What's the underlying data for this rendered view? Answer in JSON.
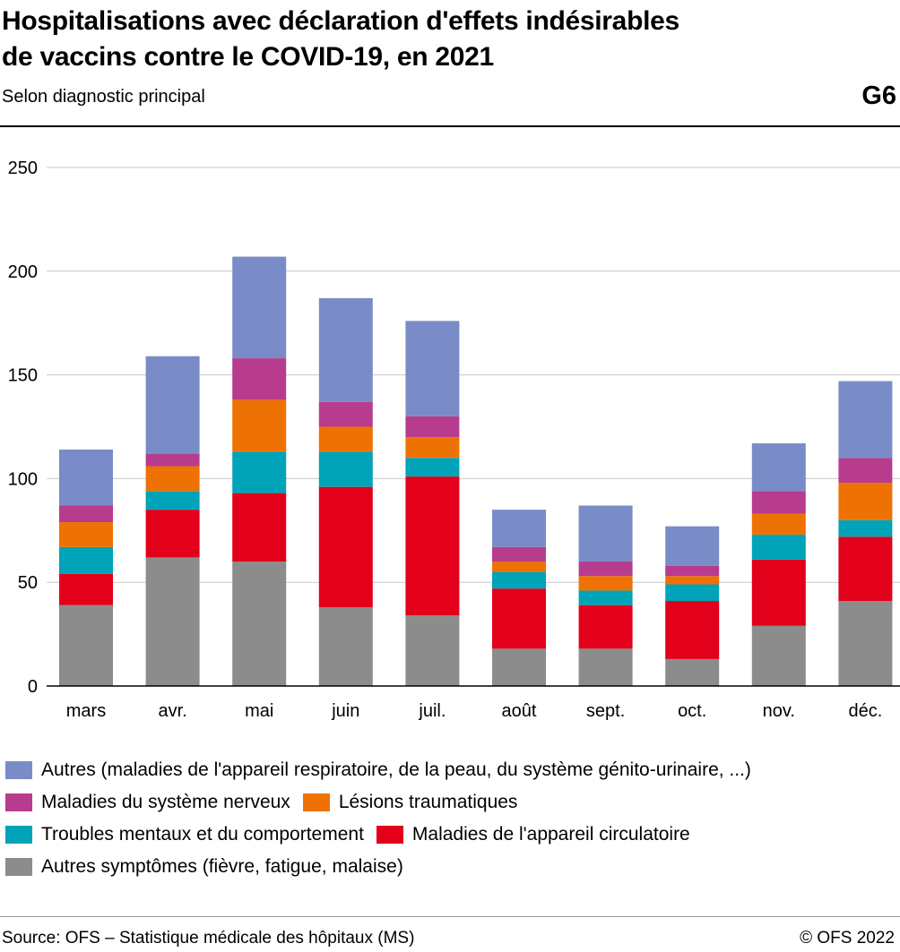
{
  "header": {
    "title_line1": "Hospitalisations avec déclaration d'effets indésirables",
    "title_line2": "de vaccins contre le COVID-19, en 2021",
    "subtitle": "Selon diagnostic principal",
    "code": "G6"
  },
  "footer": {
    "source": "Source: OFS – Statistique médicale des hôpitaux (MS)",
    "copyright": "© OFS 2022"
  },
  "chart_data": {
    "type": "bar",
    "stacked": true,
    "title": "Hospitalisations avec déclaration d'effets indésirables de vaccins contre le COVID-19, en 2021",
    "subtitle": "Selon diagnostic principal",
    "xlabel": "",
    "ylabel": "",
    "ylim": [
      0,
      250
    ],
    "yticks": [
      0,
      50,
      100,
      150,
      200,
      250
    ],
    "grid": true,
    "legend_position": "bottom",
    "categories": [
      "mars",
      "avr.",
      "mai",
      "juin",
      "juil.",
      "août",
      "sept.",
      "oct.",
      "nov.",
      "déc."
    ],
    "series": [
      {
        "name": "Autres symptômes (fièvre, fatigue, malaise)",
        "color": "#8c8c8c",
        "values": [
          39,
          62,
          60,
          38,
          34,
          18,
          18,
          13,
          29,
          41
        ]
      },
      {
        "name": "Maladies de l'appareil circulatoire",
        "color": "#e2001a",
        "values": [
          15,
          23,
          33,
          58,
          67,
          29,
          21,
          28,
          32,
          31
        ]
      },
      {
        "name": "Troubles mentaux et du comportement",
        "color": "#00a3b7",
        "values": [
          13,
          9,
          20,
          17,
          9,
          8,
          7,
          8,
          12,
          8
        ]
      },
      {
        "name": "Lésions traumatiques",
        "color": "#ee7203",
        "values": [
          12,
          12,
          25,
          12,
          10,
          5,
          7,
          4,
          10,
          18
        ]
      },
      {
        "name": "Maladies du système nerveux",
        "color": "#b73c8e",
        "values": [
          8,
          6,
          20,
          12,
          10,
          7,
          7,
          5,
          11,
          12
        ]
      },
      {
        "name": "Autres (maladies de l'appareil respiratoire, de la peau, du système génito-urinaire, ...)",
        "color": "#7a8cc7",
        "values": [
          27,
          47,
          49,
          50,
          46,
          18,
          27,
          19,
          23,
          37
        ]
      }
    ]
  },
  "legend": {
    "rows": [
      [
        5
      ],
      [
        4,
        3
      ],
      [
        2,
        1
      ],
      [
        0
      ]
    ]
  }
}
